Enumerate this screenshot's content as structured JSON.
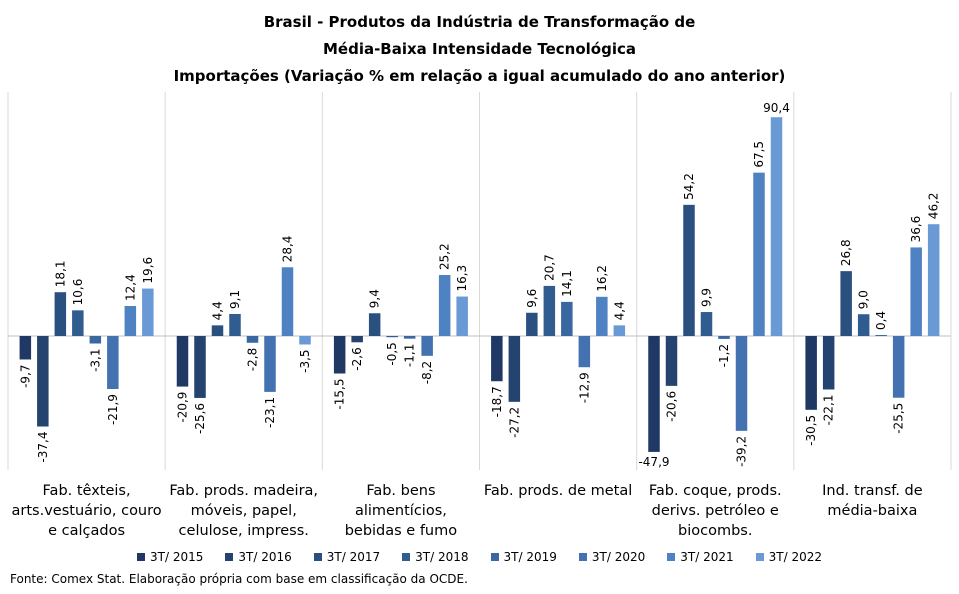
{
  "chart_data": {
    "type": "bar",
    "title": [
      "Brasil - Produtos da Indústria de Transformação de",
      "Média-Baixa Intensidade Tecnológica",
      "Importações (Variação % em relação a igual acumulado do ano anterior)"
    ],
    "categories": [
      "Fab. têxteis,\narts.vestuário, couro\ne calçados",
      "Fab. prods. madeira,\nmóveis, papel,\ncelulose, impress.",
      "Fab. bens\nalimentícios,\nbebidas e fumo",
      "Fab. prods. de metal",
      "Fab. coque, prods.\nderivs. petróleo e\nbiocombs.",
      "Ind. transf. de\nmédia-baixa"
    ],
    "series": [
      {
        "name": "3T/ 2015",
        "color": "#203864",
        "values": [
          -9.7,
          -20.9,
          -15.5,
          -18.7,
          -47.9,
          -30.5
        ]
      },
      {
        "name": "3T/ 2016",
        "color": "#24436e",
        "values": [
          -37.4,
          -25.6,
          -2.6,
          -27.2,
          -20.6,
          -22.1
        ]
      },
      {
        "name": "3T/ 2017",
        "color": "#2a5080",
        "values": [
          18.1,
          4.4,
          9.4,
          9.6,
          54.2,
          26.8
        ]
      },
      {
        "name": "3T/ 2018",
        "color": "#305c90",
        "values": [
          10.6,
          9.1,
          -0.5,
          20.7,
          9.9,
          9.0
        ]
      },
      {
        "name": "3T/ 2019",
        "color": "#3a67a0",
        "values": [
          -3.1,
          -2.8,
          -1.1,
          14.1,
          -1.2,
          0.4
        ]
      },
      {
        "name": "3T/ 2020",
        "color": "#4472b0",
        "values": [
          -21.9,
          -23.1,
          -8.2,
          -12.9,
          -39.2,
          -25.5
        ]
      },
      {
        "name": "3T/ 2021",
        "color": "#4f82c3",
        "values": [
          12.4,
          28.4,
          25.2,
          16.2,
          67.5,
          36.6
        ]
      },
      {
        "name": "3T/ 2022",
        "color": "#6a9ad6",
        "values": [
          19.6,
          -3.5,
          16.3,
          4.4,
          90.4,
          46.2
        ]
      }
    ],
    "value_labels": [
      [
        "-9,7",
        "-20,9",
        "-15,5",
        "-18,7",
        "-47,9",
        "-30,5"
      ],
      [
        "-37,4",
        "-25,6",
        "-2,6",
        "-27,2",
        "-20,6",
        "-22,1"
      ],
      [
        "18,1",
        "4,4",
        "9,4",
        "9,6",
        "54,2",
        "26,8"
      ],
      [
        "10,6",
        "9,1",
        "-0,5",
        "20,7",
        "9,9",
        "9,0"
      ],
      [
        "-3,1",
        "-2,8",
        "-1,1",
        "14,1",
        "-1,2",
        "0,4"
      ],
      [
        "-21,9",
        "-23,1",
        "-8,2",
        "-12,9",
        "-39,2",
        "-25,5"
      ],
      [
        "12,4",
        "28,4",
        "25,2",
        "16,2",
        "67,5",
        "36,6"
      ],
      [
        "19,6",
        "-3,5",
        "16,3",
        "4,4",
        "90,4",
        "46,2"
      ]
    ],
    "legend_position": "bottom",
    "grid": false
  },
  "source": "Fonte: Comex Stat. Elaboração própria com base em classificação da OCDE."
}
